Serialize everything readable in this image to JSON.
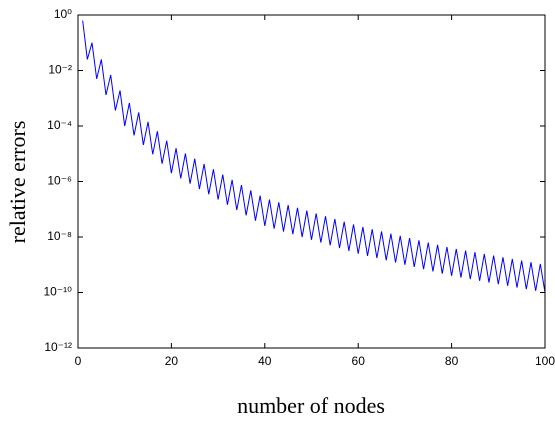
{
  "chart_data": {
    "type": "line",
    "xlabel": "number of nodes",
    "ylabel": "relative errors",
    "x": [
      1,
      2,
      3,
      4,
      5,
      6,
      7,
      8,
      9,
      10,
      11,
      12,
      13,
      14,
      15,
      16,
      17,
      18,
      19,
      20,
      21,
      22,
      23,
      24,
      25,
      26,
      27,
      28,
      29,
      30,
      31,
      32,
      33,
      34,
      35,
      36,
      37,
      38,
      39,
      40,
      41,
      42,
      43,
      44,
      45,
      46,
      47,
      48,
      49,
      50,
      51,
      52,
      53,
      54,
      55,
      56,
      57,
      58,
      59,
      60,
      61,
      62,
      63,
      64,
      65,
      66,
      67,
      68,
      69,
      70,
      71,
      72,
      73,
      74,
      75,
      76,
      77,
      78,
      79,
      80,
      81,
      82,
      83,
      84,
      85,
      86,
      87,
      88,
      89,
      90,
      91,
      92,
      93,
      94,
      95,
      96,
      97,
      98,
      99,
      100
    ],
    "values": [
      0.631,
      0.0251,
      0.1,
      0.00501,
      0.0251,
      0.00132,
      0.00692,
      0.000363,
      0.00191,
      0.0001,
      0.000676,
      4.57e-05,
      0.000309,
      2.09e-05,
      0.000141,
      9.55e-06,
      6.46e-05,
      4.37e-06,
      2.95e-05,
      2e-06,
      1.58e-05,
      1.29e-06,
      1.02e-05,
      8.32e-07,
      6.61e-06,
      5.37e-07,
      4.27e-06,
      3.47e-07,
      2.75e-06,
      2.24e-07,
      1.78e-06,
      1.45e-07,
      1.15e-06,
      9.33e-08,
      7.41e-07,
      6.03e-08,
      4.79e-07,
      3.89e-08,
      3.09e-07,
      2.51e-08,
      2.24e-07,
      2e-08,
      1.78e-07,
      1.58e-08,
      1.41e-07,
      1.26e-08,
      1.12e-07,
      1e-08,
      8.91e-08,
      7.94e-09,
      7.08e-08,
      6.31e-09,
      5.62e-08,
      5.01e-09,
      4.47e-08,
      3.98e-09,
      3.55e-08,
      3.16e-09,
      2.82e-08,
      2.51e-09,
      2.29e-08,
      2.09e-09,
      1.91e-08,
      1.74e-09,
      1.58e-08,
      1.45e-09,
      1.32e-08,
      1.2e-09,
      1.1e-08,
      1e-09,
      9.12e-09,
      8.32e-10,
      7.59e-09,
      6.92e-10,
      6.31e-09,
      5.75e-10,
      5.25e-09,
      4.79e-10,
      4.37e-09,
      3.98e-10,
      3.72e-09,
      3.47e-10,
      3.24e-09,
      3.02e-10,
      2.82e-09,
      2.63e-10,
      2.45e-09,
      2.29e-10,
      2.14e-09,
      2e-10,
      1.86e-09,
      1.74e-10,
      1.62e-09,
      1.51e-10,
      1.41e-09,
      1.32e-10,
      1.23e-09,
      1.15e-10,
      1.07e-09,
      1e-10
    ],
    "color": "#0000ff",
    "xlim": [
      0,
      100
    ],
    "xticks": [
      0,
      20,
      40,
      60,
      80,
      100
    ],
    "ylim": [
      1e-12,
      1
    ],
    "yscale": "log",
    "yticks": [
      {
        "value": 1e-12,
        "label": "10⁻¹²"
      },
      {
        "value": 1e-10,
        "label": "10⁻¹⁰"
      },
      {
        "value": 1e-08,
        "label": "10⁻⁸"
      },
      {
        "value": 1e-06,
        "label": "10⁻⁶"
      },
      {
        "value": 0.0001,
        "label": "10⁻⁴"
      },
      {
        "value": 0.01,
        "label": "10⁻²"
      },
      {
        "value": 1,
        "label": "10⁰"
      }
    ],
    "grid": false
  }
}
